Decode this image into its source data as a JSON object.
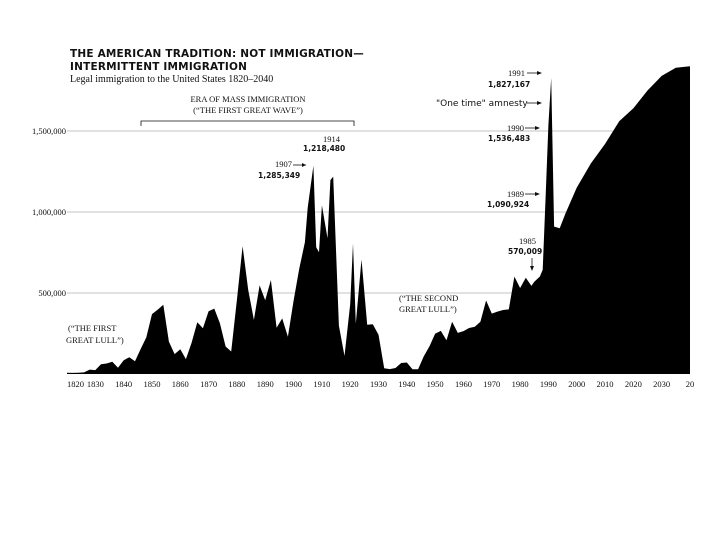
{
  "title_line1": "THE AMERICAN TRADITION: NOT IMMIGRATION—",
  "title_line2": "INTERMITTENT IMMIGRATION",
  "subtitle": "Legal immigration to the United States 1820–2040",
  "era_label_1": "ERA OF MASS IMMIGRATION",
  "era_label_2": "(“THE FIRST GREAT WAVE”)",
  "first_lull_1": "(“THE FIRST",
  "first_lull_2": "GREAT LULL”)",
  "second_lull_1": "(“THE SECOND",
  "second_lull_2": "GREAT LULL”)",
  "amnesty_label": "\"One time\" amnesty",
  "annotations": [
    {
      "year": "1907",
      "value": "1,285,349"
    },
    {
      "year": "1914",
      "value": "1,218,480"
    },
    {
      "year": "1985",
      "value": "570,009"
    },
    {
      "year": "1989",
      "value": "1,090,924"
    },
    {
      "year": "1990",
      "value": "1,536,483"
    },
    {
      "year": "1991",
      "value": "1,827,167"
    }
  ],
  "colors": {
    "fill": "#000000",
    "grid": "#888888",
    "background": "#ffffff"
  },
  "chart_data": {
    "type": "area",
    "title": "THE AMERICAN TRADITION: NOT IMMIGRATION— INTERMITTENT IMMIGRATION",
    "subtitle": "Legal immigration to the United States 1820–2040",
    "xlabel": "",
    "ylabel": "",
    "xlim": [
      1820,
      2040
    ],
    "ylim": [
      0,
      1900000
    ],
    "x_ticks": [
      "1820",
      "1830",
      "1840",
      "1850",
      "1860",
      "1870",
      "1880",
      "1890",
      "1900",
      "1910",
      "1920",
      "1930",
      "1940",
      "1950",
      "1960",
      "1970",
      "1980",
      "1990",
      "2000",
      "2010",
      "2020",
      "2030",
      "20"
    ],
    "y_ticks": [
      {
        "value": 500000,
        "label": "500,000"
      },
      {
        "value": 1000000,
        "label": "1,000,000"
      },
      {
        "value": 1500000,
        "label": "1,500,000"
      }
    ],
    "grid": "horizontal",
    "series": [
      {
        "x": [
          1820,
          1822,
          1824,
          1826,
          1828,
          1830,
          1832,
          1834,
          1836,
          1838,
          1840,
          1842,
          1844,
          1846,
          1848,
          1850,
          1852,
          1854,
          1856,
          1858,
          1860,
          1862,
          1864,
          1866,
          1868,
          1870,
          1872,
          1874,
          1876,
          1878,
          1880,
          1882,
          1884,
          1886,
          1888,
          1890,
          1892,
          1894,
          1896,
          1898,
          1900,
          1902,
          1904,
          1905,
          1907,
          1908,
          1909,
          1910,
          1912,
          1913,
          1914,
          1916,
          1918,
          1920,
          1921,
          1922,
          1924,
          1926,
          1928,
          1930,
          1932,
          1934,
          1936,
          1938,
          1940,
          1942,
          1944,
          1946,
          1948,
          1950,
          1952,
          1954,
          1956,
          1958,
          1960,
          1962,
          1964,
          1966,
          1968,
          1970,
          1972,
          1974,
          1976,
          1978,
          1980,
          1982,
          1984,
          1985,
          1987,
          1988,
          1989,
          1990,
          1991,
          1992,
          1994,
          1996,
          2000,
          2005,
          2010,
          2015,
          2020,
          2025,
          2030,
          2035,
          2040
        ],
        "y": [
          8000,
          7000,
          8000,
          10000,
          27000,
          24000,
          60000,
          65000,
          76000,
          38000,
          84000,
          104000,
          79000,
          154000,
          226000,
          370000,
          397000,
          428000,
          200000,
          123000,
          153000,
          92000,
          193000,
          319000,
          283000,
          387000,
          404000,
          313000,
          170000,
          139000,
          457000,
          789000,
          519000,
          334000,
          547000,
          455000,
          580000,
          285000,
          343000,
          230000,
          449000,
          649000,
          813000,
          1026000,
          1285349,
          783000,
          752000,
          1042000,
          838000,
          1197000,
          1218480,
          299000,
          111000,
          430000,
          805000,
          310000,
          707000,
          304000,
          307000,
          242000,
          36000,
          30000,
          37000,
          68000,
          71000,
          29000,
          29000,
          109000,
          171000,
          249000,
          266000,
          208000,
          322000,
          254000,
          265000,
          284000,
          292000,
          323000,
          454000,
          373000,
          385000,
          395000,
          399000,
          601000,
          531000,
          594000,
          544000,
          570009,
          602000,
          643000,
          1090924,
          1536483,
          1827167,
          910000,
          900000,
          990000,
          1150000,
          1300000,
          1420000,
          1560000,
          1640000,
          1750000,
          1840000,
          1890000,
          1900000
        ]
      }
    ]
  }
}
